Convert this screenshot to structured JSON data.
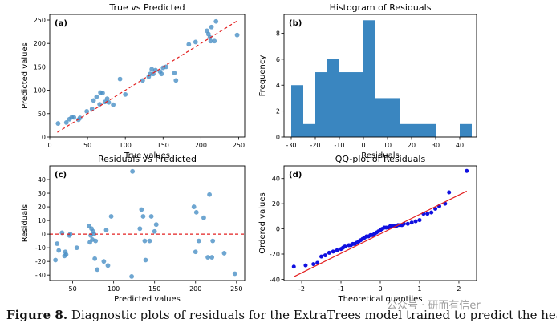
{
  "figure": {
    "caption_label": "Figure 8.",
    "caption_text": " Diagnostic plots of residuals for the ExtraTrees model trained to predict the heat evolved",
    "watermark": "公众号 · 研而有信er"
  },
  "colors": {
    "point": "#4a90c6",
    "hist": "#3a86c0",
    "qq_point": "#1010e0",
    "ref_line": "#e32020"
  },
  "chart_data": [
    {
      "type": "scatter",
      "title": "True vs Predicted",
      "panel_label": "(a)",
      "xlabel": "True values",
      "ylabel": "Predicted values",
      "xlim": [
        0,
        258
      ],
      "ylim": [
        0,
        262
      ],
      "xticks": [
        0,
        50,
        100,
        150,
        200,
        250
      ],
      "yticks": [
        0,
        50,
        100,
        150,
        200,
        250
      ],
      "reference_line": {
        "x": [
          10,
          250
        ],
        "y": [
          10,
          250
        ],
        "style": "dashed"
      },
      "points": [
        [
          11,
          29
        ],
        [
          22,
          31
        ],
        [
          26,
          38
        ],
        [
          29,
          42
        ],
        [
          32,
          42
        ],
        [
          38,
          37
        ],
        [
          40,
          41
        ],
        [
          49,
          55
        ],
        [
          56,
          60
        ],
        [
          58,
          78
        ],
        [
          62,
          86
        ],
        [
          66,
          70
        ],
        [
          67,
          95
        ],
        [
          70,
          94
        ],
        [
          73,
          75
        ],
        [
          76,
          82
        ],
        [
          78,
          74
        ],
        [
          84,
          69
        ],
        [
          93,
          124
        ],
        [
          100,
          91
        ],
        [
          123,
          121
        ],
        [
          131,
          129
        ],
        [
          133,
          135
        ],
        [
          135,
          145
        ],
        [
          137,
          135
        ],
        [
          140,
          143
        ],
        [
          146,
          140
        ],
        [
          148,
          135
        ],
        [
          150,
          148
        ],
        [
          154,
          150
        ],
        [
          165,
          137
        ],
        [
          167,
          121
        ],
        [
          184,
          198
        ],
        [
          193,
          203
        ],
        [
          208,
          227
        ],
        [
          210,
          220
        ],
        [
          212,
          213
        ],
        [
          213,
          205
        ],
        [
          214,
          235
        ],
        [
          218,
          205
        ],
        [
          220,
          247
        ],
        [
          248,
          218
        ]
      ]
    },
    {
      "type": "bar",
      "title": "Histogram of Residuals",
      "panel_label": "(b)",
      "xlabel": "Residuals",
      "ylabel": "Frequency",
      "xlim": [
        -33,
        47
      ],
      "ylim": [
        0,
        9.45
      ],
      "xticks": [
        -30,
        -20,
        -10,
        0,
        10,
        20,
        30,
        40
      ],
      "yticks": [
        0,
        2,
        4,
        6,
        8
      ],
      "bin_edges": [
        -30,
        -25,
        -20,
        -15,
        -10,
        -5,
        0,
        5,
        10,
        15,
        20,
        25,
        30,
        35,
        40,
        45
      ],
      "counts": [
        4,
        1,
        5,
        6,
        5,
        5,
        9,
        3,
        3,
        1,
        1,
        1,
        0,
        0,
        1
      ]
    },
    {
      "type": "scatter",
      "title": "Residuals vs Predicted",
      "panel_label": "(c)",
      "xlabel": "Predicted values",
      "ylabel": "Residuals",
      "xlim": [
        22,
        260
      ],
      "ylim": [
        -34,
        50
      ],
      "xticks": [
        50,
        100,
        150,
        200,
        250
      ],
      "yticks": [
        -30,
        -20,
        -10,
        0,
        10,
        20,
        30,
        40
      ],
      "reference_line": {
        "y": 0,
        "style": "dashed"
      },
      "points": [
        [
          29,
          -19
        ],
        [
          31,
          -7
        ],
        [
          33,
          -12
        ],
        [
          37,
          1
        ],
        [
          40,
          -16
        ],
        [
          41,
          -13
        ],
        [
          42,
          -15
        ],
        [
          46,
          -1
        ],
        [
          47,
          0
        ],
        [
          55,
          -10
        ],
        [
          70,
          6
        ],
        [
          71,
          -6
        ],
        [
          72,
          -1
        ],
        [
          73,
          4
        ],
        [
          74,
          -4
        ],
        [
          75,
          2
        ],
        [
          76,
          0
        ],
        [
          77,
          -18
        ],
        [
          78,
          -5
        ],
        [
          80,
          -26
        ],
        [
          88,
          -20
        ],
        [
          91,
          3
        ],
        [
          93,
          -23
        ],
        [
          97,
          13
        ],
        [
          122,
          -31
        ],
        [
          123,
          46
        ],
        [
          132,
          4
        ],
        [
          134,
          18
        ],
        [
          136,
          13
        ],
        [
          138,
          -5
        ],
        [
          139,
          -19
        ],
        [
          144,
          -5
        ],
        [
          146,
          13
        ],
        [
          150,
          2
        ],
        [
          152,
          7
        ],
        [
          198,
          20
        ],
        [
          200,
          -13
        ],
        [
          201,
          16
        ],
        [
          204,
          -5
        ],
        [
          210,
          12
        ],
        [
          215,
          -17
        ],
        [
          217,
          29
        ],
        [
          220,
          -17
        ],
        [
          221,
          -5
        ],
        [
          235,
          -14
        ],
        [
          248,
          -29
        ]
      ]
    },
    {
      "type": "scatter",
      "title": "QQ-plot of Residuals",
      "panel_label": "(d)",
      "xlabel": "Theoretical quantiles",
      "ylabel": "Ordered values",
      "xlim": [
        -2.45,
        2.45
      ],
      "ylim": [
        -41,
        50
      ],
      "xticks": [
        -2,
        -1,
        0,
        1,
        2
      ],
      "yticks": [
        -40,
        -20,
        0,
        20,
        40
      ],
      "reference_line": {
        "x": [
          -2.2,
          2.2
        ],
        "y": [
          -38,
          30
        ],
        "style": "solid"
      },
      "points": [
        [
          -2.2,
          -30
        ],
        [
          -1.9,
          -29
        ],
        [
          -1.7,
          -28
        ],
        [
          -1.6,
          -27
        ],
        [
          -1.5,
          -22
        ],
        [
          -1.4,
          -21
        ],
        [
          -1.3,
          -19
        ],
        [
          -1.2,
          -18
        ],
        [
          -1.1,
          -17
        ],
        [
          -1.0,
          -16
        ],
        [
          -0.95,
          -15
        ],
        [
          -0.9,
          -14
        ],
        [
          -0.8,
          -13
        ],
        [
          -0.75,
          -13
        ],
        [
          -0.7,
          -12
        ],
        [
          -0.65,
          -12
        ],
        [
          -0.6,
          -11
        ],
        [
          -0.55,
          -10
        ],
        [
          -0.5,
          -9
        ],
        [
          -0.45,
          -8
        ],
        [
          -0.4,
          -7
        ],
        [
          -0.35,
          -6
        ],
        [
          -0.3,
          -6
        ],
        [
          -0.25,
          -5
        ],
        [
          -0.2,
          -5
        ],
        [
          -0.15,
          -4
        ],
        [
          -0.1,
          -3
        ],
        [
          -0.05,
          -2
        ],
        [
          0.0,
          -1
        ],
        [
          0.05,
          0
        ],
        [
          0.1,
          1
        ],
        [
          0.15,
          1
        ],
        [
          0.2,
          1
        ],
        [
          0.25,
          2
        ],
        [
          0.3,
          2
        ],
        [
          0.35,
          2
        ],
        [
          0.4,
          2
        ],
        [
          0.45,
          3
        ],
        [
          0.5,
          3
        ],
        [
          0.55,
          3
        ],
        [
          0.6,
          4
        ],
        [
          0.7,
          4
        ],
        [
          0.8,
          5
        ],
        [
          0.9,
          6
        ],
        [
          1.0,
          7
        ],
        [
          1.1,
          12
        ],
        [
          1.2,
          12
        ],
        [
          1.3,
          13
        ],
        [
          1.4,
          16
        ],
        [
          1.5,
          18
        ],
        [
          1.65,
          20
        ],
        [
          1.75,
          29
        ],
        [
          2.2,
          46
        ]
      ]
    }
  ]
}
